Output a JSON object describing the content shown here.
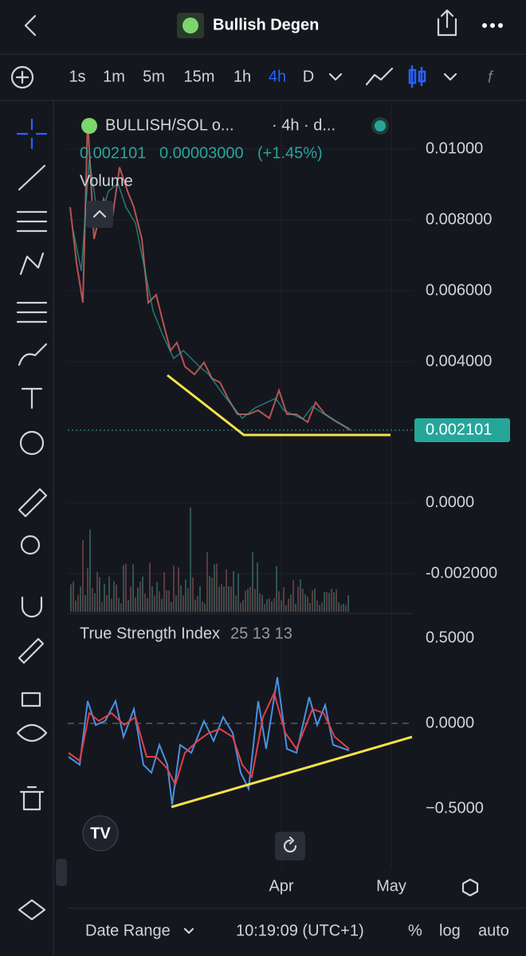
{
  "header": {
    "title": "Bullish Degen"
  },
  "toolbar": {
    "timeframes": [
      "1s",
      "1m",
      "5m",
      "15m",
      "1h",
      "4h",
      "D"
    ],
    "active": "4h"
  },
  "legend": {
    "symbol": "BULLISH/SOL o...",
    "interval": "· 4h · d...",
    "price": "0.002101",
    "change": "0.00003000",
    "change_pct": "(+1.45%)",
    "volume": "Volume"
  },
  "price_scale": [
    "0.01000",
    "0.008000",
    "0.006000",
    "0.004000",
    "0.0000",
    "-0.002000"
  ],
  "last_price": "0.002101",
  "indicator": {
    "name": "True Strength Index",
    "params": "25 13 13",
    "scale": [
      "0.5000",
      "0.0000",
      "−0.5000"
    ]
  },
  "time_axis": [
    "Apr",
    "May"
  ],
  "footer": {
    "date_range": "Date Range",
    "time": "10:19:09 (UTC+1)",
    "percent": "%",
    "log": "log",
    "auto": "auto"
  }
}
